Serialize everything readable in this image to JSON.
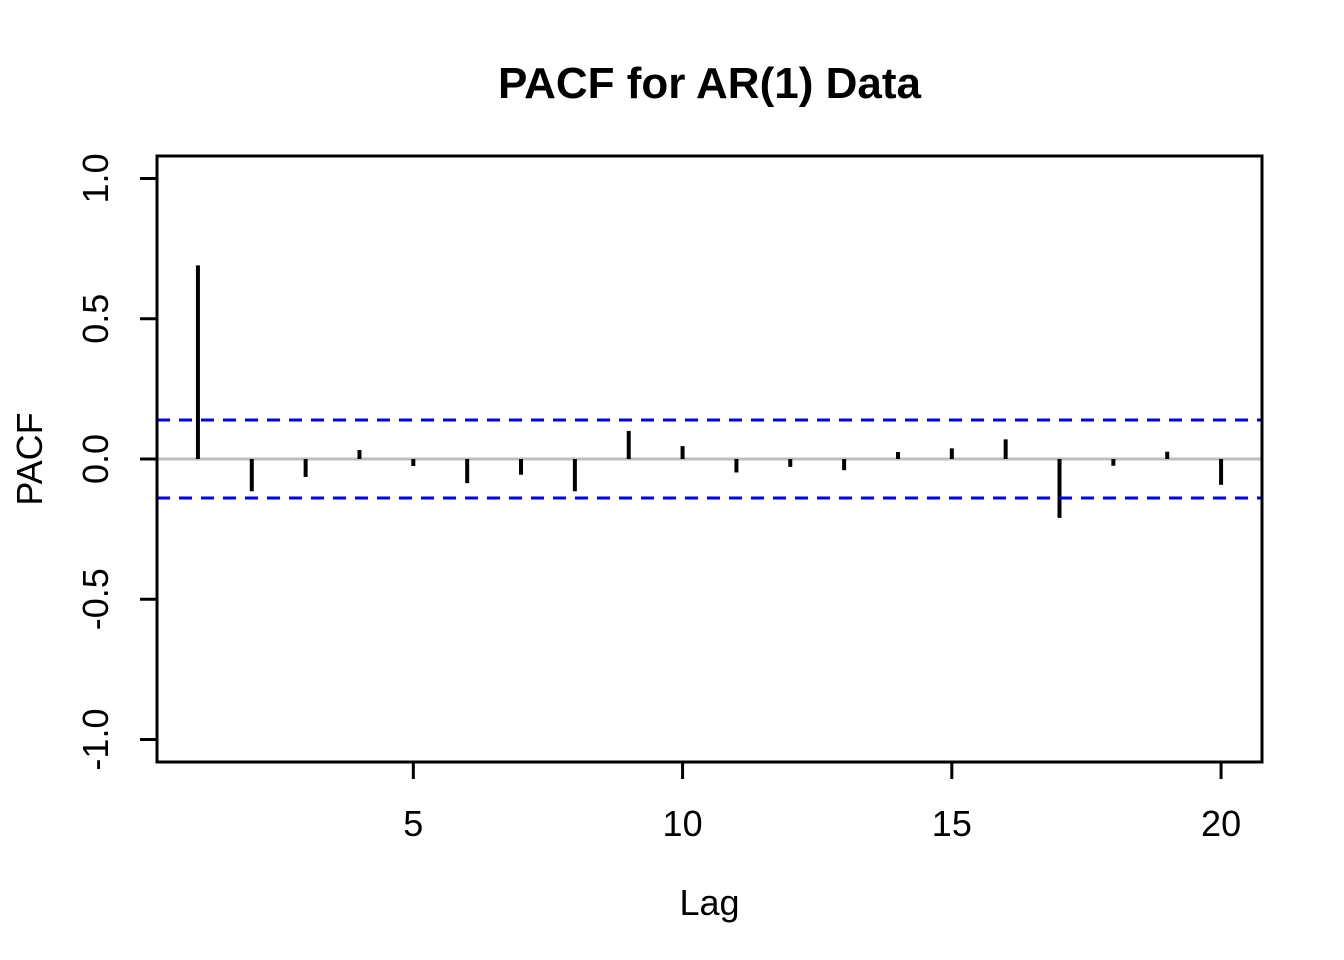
{
  "title": "PACF for AR(1) Data",
  "chart_data": {
    "type": "bar",
    "subtype": "needle",
    "title": "PACF for AR(1) Data",
    "xlabel": "Lag",
    "ylabel": "PACF",
    "x": [
      1,
      2,
      3,
      4,
      5,
      6,
      7,
      8,
      9,
      10,
      11,
      12,
      13,
      14,
      15,
      16,
      17,
      18,
      19,
      20
    ],
    "values": [
      0.69,
      -0.115,
      -0.064,
      0.032,
      -0.025,
      -0.086,
      -0.056,
      -0.115,
      0.1,
      0.046,
      -0.048,
      -0.028,
      -0.04,
      0.025,
      0.038,
      0.07,
      -0.21,
      -0.024,
      0.026,
      -0.092
    ],
    "confidence_bands": {
      "upper": 0.139,
      "lower": -0.139,
      "line_style": "dashed",
      "color": "#0000FF"
    },
    "zero_line": {
      "y": 0,
      "color": "#BEBEBE"
    },
    "xlim": [
      0.24,
      20.76
    ],
    "ylim": [
      -1.08,
      1.08
    ],
    "xticks": [
      5,
      10,
      15,
      20
    ],
    "xtick_labels": [
      "5",
      "10",
      "15",
      "20"
    ],
    "yticks": [
      -1.0,
      -0.5,
      0.0,
      0.5,
      1.0
    ],
    "ytick_labels": [
      "-1.0",
      "-0.5",
      "0.0",
      "0.5",
      "1.0"
    ],
    "grid": false,
    "legend": null,
    "bar_color": "#000000",
    "axis_color": "#000000",
    "background_color": "#FFFFFF"
  }
}
